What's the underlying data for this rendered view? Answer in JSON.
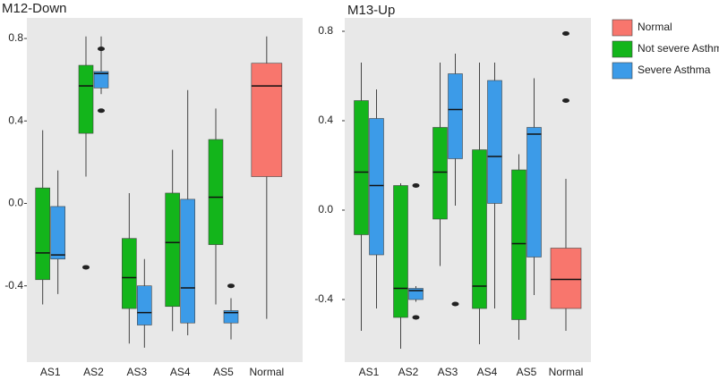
{
  "chart_data": [
    {
      "type": "box",
      "title": "M12-Down",
      "categories": [
        "AS1",
        "AS2",
        "AS3",
        "AS4",
        "AS5",
        "Normal"
      ],
      "ylim": [
        -0.77,
        0.9
      ],
      "yticks": [
        -0.4,
        {
          "value": 0,
          "label": "0.0"
        },
        0.4,
        0.8
      ],
      "series": [
        {
          "color": "#f8766d",
          "values": [
            null,
            null,
            null,
            null,
            null,
            {
              "min": -0.56,
              "q1": 0.13,
              "median": 0.57,
              "q3": 0.68,
              "max": 0.81,
              "outliers": []
            }
          ]
        },
        {
          "color": "#13b51b",
          "values": [
            {
              "min": -0.49,
              "q1": -0.37,
              "median": -0.24,
              "q3": 0.075,
              "max": 0.355,
              "outliers": []
            },
            {
              "min": 0.13,
              "q1": 0.34,
              "median": 0.57,
              "q3": 0.67,
              "max": 0.81,
              "outliers": [
                -0.31
              ]
            },
            {
              "min": -0.68,
              "q1": -0.51,
              "median": -0.36,
              "q3": -0.17,
              "max": 0.05,
              "outliers": []
            },
            {
              "min": -0.62,
              "q1": -0.5,
              "median": -0.19,
              "q3": 0.05,
              "max": 0.26,
              "outliers": []
            },
            {
              "min": -0.49,
              "q1": -0.2,
              "median": 0.03,
              "q3": 0.31,
              "max": 0.46,
              "outliers": []
            },
            null
          ]
        },
        {
          "color": "#3c9be8",
          "values": [
            {
              "min": -0.44,
              "q1": -0.27,
              "median": -0.25,
              "q3": -0.015,
              "max": 0.16,
              "outliers": []
            },
            {
              "min": 0.53,
              "q1": 0.56,
              "median": 0.63,
              "q3": 0.64,
              "max": 0.81,
              "outliers": [
                0.75,
                0.45
              ]
            },
            {
              "min": -0.7,
              "q1": -0.59,
              "median": -0.53,
              "q3": -0.4,
              "max": -0.27,
              "outliers": []
            },
            {
              "min": -0.64,
              "q1": -0.58,
              "median": -0.41,
              "q3": 0.02,
              "max": 0.55,
              "outliers": []
            },
            {
              "min": -0.66,
              "q1": -0.58,
              "median": -0.53,
              "q3": -0.52,
              "max": -0.46,
              "outliers": [
                -0.4
              ]
            },
            null
          ]
        }
      ]
    },
    {
      "type": "box",
      "title": "M13-Up",
      "categories": [
        "AS1",
        "AS2",
        "AS3",
        "AS4",
        "AS5",
        "Normal"
      ],
      "ylim": [
        -0.68,
        0.86
      ],
      "yticks": [
        -0.4,
        {
          "value": 0,
          "label": "0.0"
        },
        0.4,
        0.8
      ],
      "legend": "right",
      "series": [
        {
          "name": "Normal",
          "color": "#f8766d",
          "values": [
            null,
            null,
            null,
            null,
            null,
            {
              "min": -0.54,
              "q1": -0.44,
              "median": -0.31,
              "q3": -0.17,
              "max": 0.14,
              "outliers": [
                0.79,
                0.49
              ]
            }
          ]
        },
        {
          "name": "Not severe Asthma",
          "color": "#13b51b",
          "values": [
            {
              "min": -0.54,
              "q1": -0.11,
              "median": 0.17,
              "q3": 0.49,
              "max": 0.66,
              "outliers": []
            },
            {
              "min": -0.62,
              "q1": -0.48,
              "median": -0.35,
              "q3": 0.11,
              "max": 0.12,
              "outliers": []
            },
            {
              "min": -0.25,
              "q1": -0.04,
              "median": 0.17,
              "q3": 0.37,
              "max": 0.66,
              "outliers": []
            },
            {
              "min": -0.6,
              "q1": -0.44,
              "median": -0.34,
              "q3": 0.27,
              "max": 0.66,
              "outliers": []
            },
            {
              "min": -0.58,
              "q1": -0.49,
              "median": -0.15,
              "q3": 0.18,
              "max": 0.25,
              "outliers": []
            },
            null
          ]
        },
        {
          "name": "Severe Asthma",
          "color": "#3c9be8",
          "values": [
            {
              "min": -0.44,
              "q1": -0.2,
              "median": 0.11,
              "q3": 0.41,
              "max": 0.54,
              "outliers": []
            },
            {
              "min": -0.41,
              "q1": -0.4,
              "median": -0.36,
              "q3": -0.35,
              "max": -0.34,
              "outliers": [
                0.11,
                -0.48
              ]
            },
            {
              "min": 0.02,
              "q1": 0.23,
              "median": 0.45,
              "q3": 0.61,
              "max": 0.7,
              "outliers": [
                -0.42
              ]
            },
            {
              "min": -0.44,
              "q1": 0.03,
              "median": 0.24,
              "q3": 0.58,
              "max": 0.66,
              "outliers": []
            },
            {
              "min": -0.38,
              "q1": -0.21,
              "median": 0.34,
              "q3": 0.37,
              "max": 0.59,
              "outliers": []
            },
            null
          ]
        }
      ]
    }
  ]
}
